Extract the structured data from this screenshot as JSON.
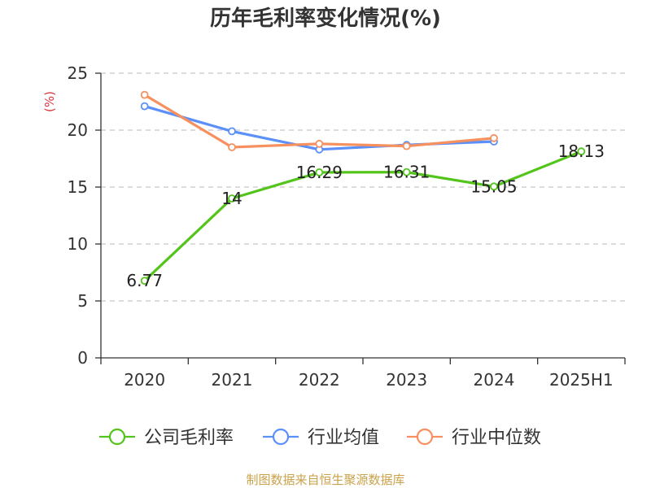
{
  "colors": {
    "company": "#52c41a",
    "industry_avg": "#5b8ff9",
    "industry_median": "#f6905f",
    "unit": "#d9363e",
    "source": "#c9a24a",
    "grid": "#c8c8c8",
    "axis": "#333333"
  },
  "chart_data": {
    "type": "line",
    "title": "历年毛利率变化情况(%)",
    "ylabel": "(%)",
    "xlabel": "",
    "categories": [
      "2020",
      "2021",
      "2022",
      "2023",
      "2024",
      "2025H1"
    ],
    "ylim": [
      0,
      25
    ],
    "yticks": [
      0,
      5,
      10,
      15,
      20,
      25
    ],
    "grid": true,
    "legend_position": "bottom",
    "series": [
      {
        "name": "公司毛利率",
        "color": "#52c41a",
        "values": [
          6.77,
          14,
          16.29,
          16.31,
          15.05,
          18.13
        ],
        "labels": [
          "6.77",
          "14",
          "16.29",
          "16.31",
          "15.05",
          "18.13"
        ]
      },
      {
        "name": "行业均值",
        "color": "#5b8ff9",
        "values": [
          22.1,
          19.9,
          18.3,
          18.7,
          19.0,
          null
        ]
      },
      {
        "name": "行业中位数",
        "color": "#f6905f",
        "values": [
          23.1,
          18.5,
          18.8,
          18.6,
          19.3,
          null
        ]
      }
    ]
  },
  "source_text": "制图数据来自恒生聚源数据库"
}
